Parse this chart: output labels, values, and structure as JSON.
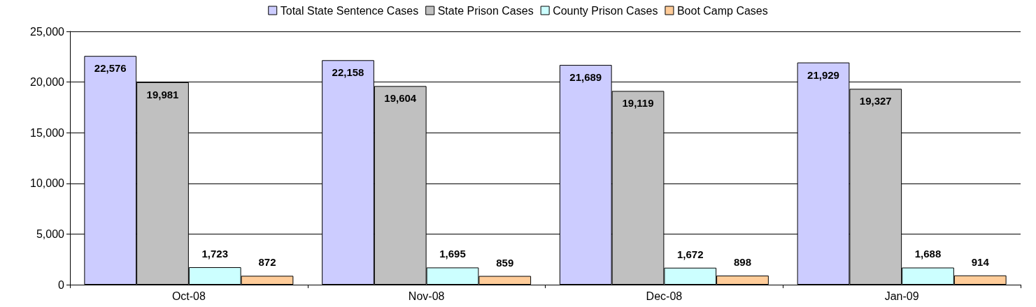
{
  "chart_data": {
    "type": "bar",
    "categories": [
      "Oct-08",
      "Nov-08",
      "Dec-08",
      "Jan-09"
    ],
    "series": [
      {
        "name": "Total State Sentence Cases",
        "color": "#ccccff",
        "values": [
          22576,
          22158,
          21689,
          21929
        ],
        "value_labels": [
          "22,576",
          "22,158",
          "21,689",
          "21,929"
        ]
      },
      {
        "name": "State Prison Cases",
        "color": "#c0c0c0",
        "values": [
          19981,
          19604,
          19119,
          19327
        ],
        "value_labels": [
          "19,981",
          "19,604",
          "19,119",
          "19,327"
        ]
      },
      {
        "name": "County Prison Cases",
        "color": "#ccffff",
        "values": [
          1723,
          1695,
          1672,
          1688
        ],
        "value_labels": [
          "1,723",
          "1,695",
          "1,672",
          "1,688"
        ]
      },
      {
        "name": "Boot Camp Cases",
        "color": "#ffcc99",
        "values": [
          872,
          859,
          898,
          914
        ],
        "value_labels": [
          "872",
          "859",
          "898",
          "914"
        ]
      }
    ],
    "ylim": [
      0,
      25000
    ],
    "yticks": [
      0,
      {
        "value": 5000,
        "label": "5,000"
      },
      {
        "value": 10000,
        "label": "10,000"
      },
      {
        "value": 15000,
        "label": "15,000"
      },
      {
        "value": 20000,
        "label": "20,000"
      },
      {
        "value": 25000,
        "label": "25,000"
      }
    ],
    "grid": "y",
    "legend": "top"
  }
}
